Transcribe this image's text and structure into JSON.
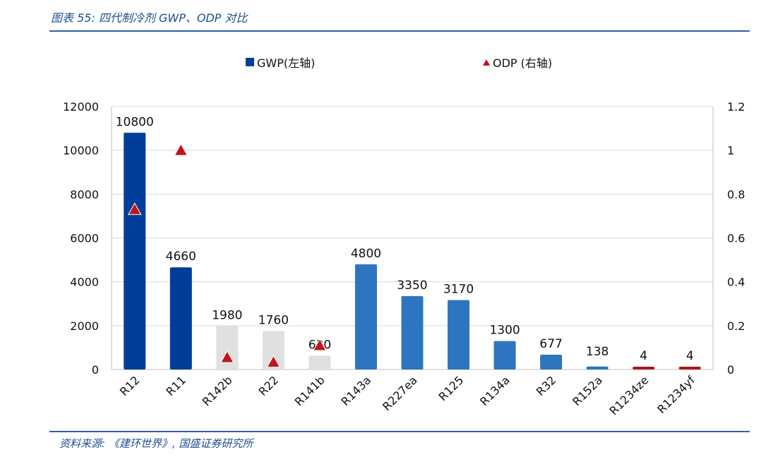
{
  "header": {
    "title": "图表 55:  四代制冷剂 GWP、ODP 对比"
  },
  "footer": {
    "source": "资料来源:  《建环世界》, 国盛证券研究所"
  },
  "colors": {
    "gen1": "#003d99",
    "gen2": "#e0e0e0",
    "gen3": "#2e75c0",
    "gen4": "#b01419",
    "odp": "#c0161b"
  },
  "chart_data": {
    "type": "bar",
    "categories": [
      "R12",
      "R11",
      "R142b",
      "R22",
      "R141b",
      "R143a",
      "R227ea",
      "R125",
      "R134a",
      "R32",
      "R152a",
      "R1234ze",
      "R1234yf"
    ],
    "series": [
      {
        "name": "GWP(左轴)",
        "axis": "left",
        "values": [
          10800,
          4660,
          1980,
          1760,
          630,
          4800,
          3350,
          3170,
          1300,
          677,
          138,
          4,
          4
        ],
        "data_labels": [
          "10800",
          "4660",
          "1980",
          "1760",
          "630",
          "4800",
          "3350",
          "3170",
          "1300",
          "677",
          "138",
          "4",
          "4"
        ],
        "bar_colors": [
          "#003d99",
          "#003d99",
          "#e0e0e0",
          "#e0e0e0",
          "#e0e0e0",
          "#2e75c0",
          "#2e75c0",
          "#2e75c0",
          "#2e75c0",
          "#2e75c0",
          "#2e75c0",
          "#b01419",
          "#b01419"
        ]
      },
      {
        "name": "ODP (右轴)",
        "axis": "right",
        "marker": "triangle",
        "values": [
          0.73,
          1,
          0.055,
          0.034,
          0.11,
          null,
          null,
          null,
          null,
          null,
          null,
          null,
          null
        ]
      }
    ],
    "left_axis": {
      "ylim": [
        0,
        12000
      ],
      "ticks": [
        "0",
        "2000",
        "4000",
        "6000",
        "8000",
        "10000",
        "12000"
      ]
    },
    "right_axis": {
      "ylim": [
        0,
        1.2
      ],
      "ticks": [
        "0",
        "0.2",
        "0.4",
        "0.6",
        "0.8",
        "1",
        "1.2"
      ]
    },
    "grid": true,
    "legend": "top"
  }
}
